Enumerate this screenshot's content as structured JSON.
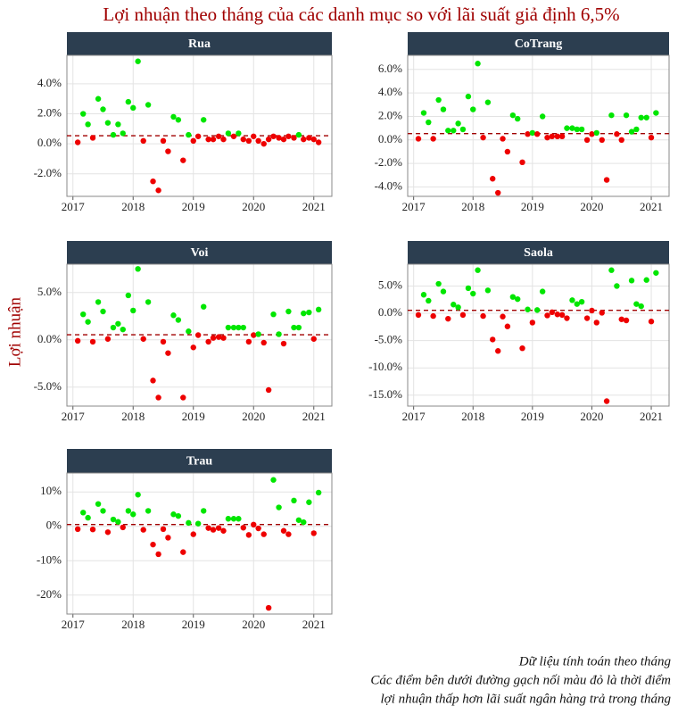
{
  "title": "Lợi nhuận theo tháng của các danh mục so với lãi suất giả định 6,5%",
  "y_label": "Lợi nhuận",
  "caption": [
    "Dữ liệu tính toán theo tháng",
    "Các điểm bên dưới đường gạch nối màu đỏ là thời điểm",
    "lợi nhuận thấp hơn lãi suất ngân hàng trả trong tháng"
  ],
  "chart_data": [
    {
      "type": "scatter",
      "title": "Rua",
      "threshold": 0.54,
      "above_color": "#00e600",
      "below_color": "#ee0000",
      "threshold_color": "#a00000",
      "grid": true,
      "x": [
        2017.08,
        2017.17,
        2017.25,
        2017.33,
        2017.42,
        2017.5,
        2017.58,
        2017.67,
        2017.75,
        2017.83,
        2017.92,
        2018.0,
        2018.08,
        2018.17,
        2018.25,
        2018.33,
        2018.42,
        2018.5,
        2018.58,
        2018.67,
        2018.75,
        2018.83,
        2018.92,
        2019.0,
        2019.08,
        2019.17,
        2019.25,
        2019.33,
        2019.42,
        2019.5,
        2019.58,
        2019.67,
        2019.75,
        2019.83,
        2019.92,
        2020.0,
        2020.08,
        2020.17,
        2020.25,
        2020.33,
        2020.42,
        2020.5,
        2020.58,
        2020.67,
        2020.75,
        2020.83,
        2020.92,
        2021.0,
        2021.08
      ],
      "values": [
        0.1,
        2.0,
        1.3,
        0.4,
        3.0,
        2.3,
        1.4,
        0.6,
        1.3,
        0.7,
        2.8,
        2.4,
        5.5,
        0.2,
        2.6,
        -2.5,
        -3.1,
        0.2,
        -0.5,
        1.8,
        1.6,
        -1.1,
        0.6,
        0.2,
        0.5,
        1.6,
        0.3,
        0.3,
        0.5,
        0.3,
        0.7,
        0.5,
        0.7,
        0.3,
        0.2,
        0.5,
        0.2,
        0.0,
        0.3,
        0.5,
        0.4,
        0.3,
        0.5,
        0.4,
        0.6,
        0.3,
        0.4,
        0.3,
        0.1
      ],
      "xlim": [
        2016.9,
        2021.3
      ],
      "xticks": [
        2017,
        2018,
        2019,
        2020,
        2021
      ],
      "ylim": [
        -3.5,
        5.9
      ],
      "yticks": [
        {
          "value": -2,
          "label": "-2.0%"
        },
        {
          "value": 0,
          "label": "0.0%"
        },
        {
          "value": 2,
          "label": "2.0%"
        },
        {
          "value": 4,
          "label": "4.0%"
        }
      ]
    },
    {
      "type": "scatter",
      "title": "CoTrang",
      "threshold": 0.54,
      "above_color": "#00e600",
      "below_color": "#ee0000",
      "threshold_color": "#a00000",
      "grid": true,
      "x": [
        2017.08,
        2017.17,
        2017.25,
        2017.33,
        2017.42,
        2017.5,
        2017.58,
        2017.67,
        2017.75,
        2017.83,
        2017.92,
        2018.0,
        2018.08,
        2018.17,
        2018.25,
        2018.33,
        2018.42,
        2018.5,
        2018.58,
        2018.67,
        2018.75,
        2018.83,
        2018.92,
        2019.0,
        2019.08,
        2019.17,
        2019.25,
        2019.33,
        2019.42,
        2019.5,
        2019.58,
        2019.67,
        2019.75,
        2019.83,
        2019.92,
        2020.0,
        2020.08,
        2020.17,
        2020.25,
        2020.33,
        2020.42,
        2020.5,
        2020.58,
        2020.67,
        2020.75,
        2020.83,
        2020.92,
        2021.0,
        2021.08
      ],
      "values": [
        0.1,
        2.3,
        1.5,
        0.1,
        3.4,
        2.6,
        0.8,
        0.8,
        1.4,
        0.9,
        3.7,
        2.6,
        6.5,
        0.2,
        3.2,
        -3.3,
        -4.5,
        0.1,
        -1.0,
        2.1,
        1.8,
        -1.9,
        0.5,
        0.6,
        0.5,
        2.0,
        0.2,
        0.3,
        0.3,
        0.3,
        1.0,
        1.0,
        0.9,
        0.9,
        0.0,
        0.5,
        0.6,
        0.0,
        -3.4,
        2.1,
        0.5,
        0.0,
        2.1,
        0.7,
        0.9,
        1.9,
        1.9,
        0.2,
        2.3
      ],
      "xlim": [
        2016.9,
        2021.3
      ],
      "xticks": [
        2017,
        2018,
        2019,
        2020,
        2021
      ],
      "ylim": [
        -4.8,
        7.2
      ],
      "yticks": [
        {
          "value": -4,
          "label": "-4.0%"
        },
        {
          "value": -2,
          "label": "-2.0%"
        },
        {
          "value": 0,
          "label": "0.0%"
        },
        {
          "value": 2,
          "label": "2.0%"
        },
        {
          "value": 4,
          "label": "4.0%"
        },
        {
          "value": 6,
          "label": "6.0%"
        }
      ]
    },
    {
      "type": "scatter",
      "title": "Voi",
      "threshold": 0.54,
      "above_color": "#00e600",
      "below_color": "#ee0000",
      "threshold_color": "#a00000",
      "grid": true,
      "x": [
        2017.08,
        2017.17,
        2017.25,
        2017.33,
        2017.42,
        2017.5,
        2017.58,
        2017.67,
        2017.75,
        2017.83,
        2017.92,
        2018.0,
        2018.08,
        2018.17,
        2018.25,
        2018.33,
        2018.42,
        2018.5,
        2018.58,
        2018.67,
        2018.75,
        2018.83,
        2018.92,
        2019.0,
        2019.08,
        2019.17,
        2019.25,
        2019.33,
        2019.42,
        2019.5,
        2019.58,
        2019.67,
        2019.75,
        2019.83,
        2019.92,
        2020.0,
        2020.08,
        2020.17,
        2020.25,
        2020.33,
        2020.42,
        2020.5,
        2020.58,
        2020.67,
        2020.75,
        2020.83,
        2020.92,
        2021.0,
        2021.08
      ],
      "values": [
        -0.1,
        2.7,
        1.9,
        -0.2,
        4.0,
        3.0,
        0.1,
        1.3,
        1.7,
        1.1,
        4.7,
        3.1,
        7.5,
        0.1,
        4.0,
        -4.3,
        -6.1,
        -0.2,
        -1.4,
        2.6,
        2.1,
        -6.1,
        0.9,
        -0.8,
        0.5,
        3.5,
        -0.2,
        0.2,
        0.3,
        0.2,
        1.3,
        1.3,
        1.3,
        1.3,
        -0.2,
        0.5,
        0.6,
        -0.3,
        -5.3,
        2.7,
        0.6,
        -0.4,
        3.0,
        1.3,
        1.3,
        2.8,
        2.9,
        0.1,
        3.2
      ],
      "xlim": [
        2016.9,
        2021.3
      ],
      "xticks": [
        2017,
        2018,
        2019,
        2020,
        2021
      ],
      "ylim": [
        -7.0,
        8.0
      ],
      "yticks": [
        {
          "value": -5,
          "label": "-5.0%"
        },
        {
          "value": 0,
          "label": "0.0%"
        },
        {
          "value": 5,
          "label": "5.0%"
        }
      ]
    },
    {
      "type": "scatter",
      "title": "Saola",
      "threshold": 0.54,
      "above_color": "#00e600",
      "below_color": "#ee0000",
      "threshold_color": "#a00000",
      "grid": true,
      "x": [
        2017.08,
        2017.17,
        2017.25,
        2017.33,
        2017.42,
        2017.5,
        2017.58,
        2017.67,
        2017.75,
        2017.83,
        2017.92,
        2018.0,
        2018.08,
        2018.17,
        2018.25,
        2018.33,
        2018.42,
        2018.5,
        2018.58,
        2018.67,
        2018.75,
        2018.83,
        2018.92,
        2019.0,
        2019.08,
        2019.17,
        2019.25,
        2019.33,
        2019.42,
        2019.5,
        2019.58,
        2019.67,
        2019.75,
        2019.83,
        2019.92,
        2020.0,
        2020.08,
        2020.17,
        2020.25,
        2020.33,
        2020.42,
        2020.5,
        2020.58,
        2020.67,
        2020.75,
        2020.83,
        2020.92,
        2021.0,
        2021.08
      ],
      "values": [
        -0.3,
        3.4,
        2.3,
        -0.5,
        5.4,
        4.0,
        -1.0,
        1.6,
        1.1,
        -0.3,
        4.6,
        3.6,
        7.9,
        -0.5,
        4.2,
        -4.8,
        -6.9,
        -0.6,
        -2.4,
        3.0,
        2.6,
        -6.4,
        0.7,
        -1.7,
        0.6,
        4.0,
        -0.4,
        0.2,
        -0.2,
        -0.3,
        -0.9,
        2.4,
        1.7,
        2.1,
        -0.9,
        0.5,
        -1.7,
        0.1,
        -16.1,
        7.9,
        5.0,
        -1.1,
        -1.3,
        6.0,
        1.7,
        1.3,
        6.1,
        -1.5,
        7.4
      ],
      "xlim": [
        2016.9,
        2021.3
      ],
      "xticks": [
        2017,
        2018,
        2019,
        2020,
        2021
      ],
      "ylim": [
        -17.0,
        9.0
      ],
      "yticks": [
        {
          "value": -15,
          "label": "-15.0%"
        },
        {
          "value": -10,
          "label": "-10.0%"
        },
        {
          "value": -5,
          "label": "-5.0%"
        },
        {
          "value": 0,
          "label": "0.0%"
        },
        {
          "value": 5,
          "label": "5.0%"
        }
      ]
    },
    {
      "type": "scatter",
      "title": "Trau",
      "threshold": 0.54,
      "above_color": "#00e600",
      "below_color": "#ee0000",
      "threshold_color": "#a00000",
      "grid": true,
      "x": [
        2017.08,
        2017.17,
        2017.25,
        2017.33,
        2017.42,
        2017.5,
        2017.58,
        2017.67,
        2017.75,
        2017.83,
        2017.92,
        2018.0,
        2018.08,
        2018.17,
        2018.25,
        2018.33,
        2018.42,
        2018.5,
        2018.58,
        2018.67,
        2018.75,
        2018.83,
        2018.92,
        2019.0,
        2019.08,
        2019.17,
        2019.25,
        2019.33,
        2019.42,
        2019.5,
        2019.58,
        2019.67,
        2019.75,
        2019.83,
        2019.92,
        2020.0,
        2020.08,
        2020.17,
        2020.25,
        2020.33,
        2020.42,
        2020.5,
        2020.58,
        2020.67,
        2020.75,
        2020.83,
        2020.92,
        2021.0,
        2021.08
      ],
      "values": [
        -0.8,
        4.0,
        2.5,
        -0.9,
        6.5,
        4.5,
        -1.7,
        2.0,
        1.3,
        -0.3,
        4.5,
        3.5,
        9.2,
        -1.0,
        4.5,
        -5.3,
        -8.1,
        -0.8,
        -3.3,
        3.5,
        3.0,
        -7.5,
        1.0,
        -2.3,
        0.8,
        4.5,
        -0.5,
        -1.0,
        -0.5,
        -1.3,
        2.2,
        2.2,
        2.2,
        -0.4,
        -2.5,
        0.5,
        -0.6,
        -2.3,
        -23.7,
        13.5,
        5.5,
        -1.3,
        -2.3,
        7.5,
        1.8,
        1.2,
        7.0,
        -2.0,
        9.8
      ],
      "xlim": [
        2016.9,
        2021.3
      ],
      "xticks": [
        2017,
        2018,
        2019,
        2020,
        2021
      ],
      "ylim": [
        -25.5,
        15.5
      ],
      "yticks": [
        {
          "value": -20,
          "label": "-20%"
        },
        {
          "value": -10,
          "label": "-10%"
        },
        {
          "value": 0,
          "label": "0%"
        },
        {
          "value": 10,
          "label": "10%"
        }
      ]
    }
  ]
}
